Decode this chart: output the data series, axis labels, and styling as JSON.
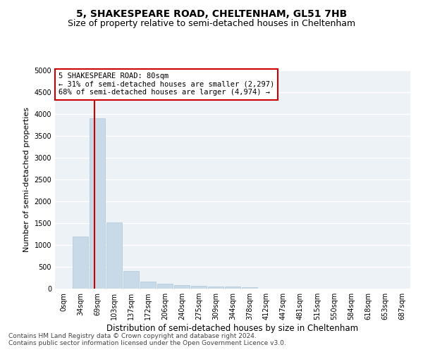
{
  "title1": "5, SHAKESPEARE ROAD, CHELTENHAM, GL51 7HB",
  "title2": "Size of property relative to semi-detached houses in Cheltenham",
  "xlabel": "Distribution of semi-detached houses by size in Cheltenham",
  "ylabel": "Number of semi-detached properties",
  "footnote1": "Contains HM Land Registry data © Crown copyright and database right 2024.",
  "footnote2": "Contains public sector information licensed under the Open Government Licence v3.0.",
  "bar_labels": [
    "0sqm",
    "34sqm",
    "69sqm",
    "103sqm",
    "137sqm",
    "172sqm",
    "206sqm",
    "240sqm",
    "275sqm",
    "309sqm",
    "344sqm",
    "378sqm",
    "412sqm",
    "447sqm",
    "481sqm",
    "515sqm",
    "550sqm",
    "584sqm",
    "618sqm",
    "653sqm",
    "687sqm"
  ],
  "bar_values": [
    5,
    1200,
    3900,
    1520,
    410,
    165,
    110,
    80,
    60,
    50,
    45,
    30,
    5,
    0,
    0,
    0,
    0,
    0,
    0,
    0,
    0
  ],
  "bar_color": "#c8d9e8",
  "bar_edge_color": "#aec6d8",
  "annotation_text": "5 SHAKESPEARE ROAD: 80sqm\n← 31% of semi-detached houses are smaller (2,297)\n68% of semi-detached houses are larger (4,974) →",
  "annotation_box_color": "#ffffff",
  "annotation_box_edge_color": "#cc0000",
  "vline_color": "#cc0000",
  "ylim": [
    0,
    5000
  ],
  "yticks": [
    0,
    500,
    1000,
    1500,
    2000,
    2500,
    3000,
    3500,
    4000,
    4500,
    5000
  ],
  "background_color": "#edf2f7",
  "grid_color": "#ffffff",
  "title1_fontsize": 10,
  "title2_fontsize": 9,
  "xlabel_fontsize": 8.5,
  "ylabel_fontsize": 8,
  "annot_fontsize": 7.5,
  "tick_fontsize": 7,
  "footnote_fontsize": 6.5
}
